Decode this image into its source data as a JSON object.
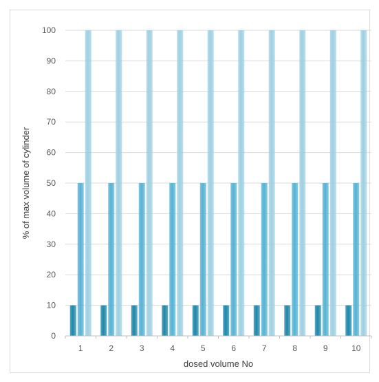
{
  "chart_data": {
    "type": "bar",
    "title": "",
    "xlabel": "dosed volume No",
    "ylabel": "% of max volume of cylinder",
    "categories": [
      "1",
      "2",
      "3",
      "4",
      "5",
      "6",
      "7",
      "8",
      "9",
      "10"
    ],
    "series": [
      {
        "values": [
          10,
          10,
          10,
          10,
          10,
          10,
          10,
          10,
          10,
          10
        ],
        "color": "#1f87a9"
      },
      {
        "values": [
          50,
          50,
          50,
          50,
          50,
          50,
          50,
          50,
          50,
          50
        ],
        "color": "#56b3d4"
      },
      {
        "values": [
          100,
          100,
          100,
          100,
          100,
          100,
          100,
          100,
          100,
          100
        ],
        "color": "#9fd0e2"
      }
    ],
    "ylim": [
      0,
      100
    ],
    "yticks": [
      0,
      10,
      20,
      30,
      40,
      50,
      60,
      70,
      80,
      90,
      100
    ],
    "grid": true,
    "legend": "none"
  }
}
